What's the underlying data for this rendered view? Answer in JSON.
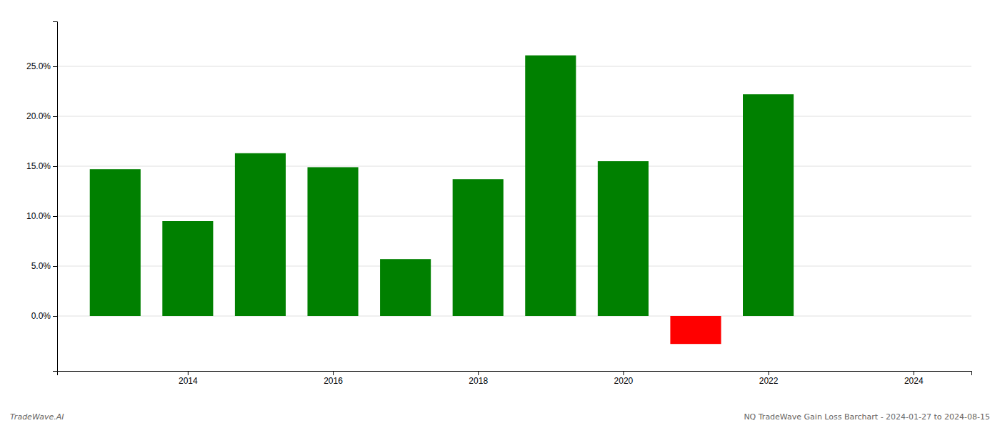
{
  "chart_data": {
    "type": "bar",
    "x": [
      2013,
      2014,
      2015,
      2016,
      2017,
      2018,
      2019,
      2020,
      2021,
      2022
    ],
    "values": [
      0.147,
      0.095,
      0.163,
      0.149,
      0.057,
      0.137,
      0.261,
      0.155,
      -0.028,
      0.222
    ],
    "colors": [
      "#008000",
      "#008000",
      "#008000",
      "#008000",
      "#008000",
      "#008000",
      "#008000",
      "#008000",
      "#ff0000",
      "#008000"
    ],
    "xlim": [
      2012.2,
      2024.8
    ],
    "xticks": [
      2014,
      2016,
      2018,
      2020,
      2022,
      2024
    ],
    "ylim": [
      -0.055,
      0.295
    ],
    "yticks": [
      {
        "value": 0.0,
        "label": "0.0%"
      },
      {
        "value": 0.05,
        "label": "5.0%"
      },
      {
        "value": 0.1,
        "label": "10.0%"
      },
      {
        "value": 0.15,
        "label": "15.0%"
      },
      {
        "value": 0.2,
        "label": "20.0%"
      },
      {
        "value": 0.25,
        "label": "25.0%"
      }
    ],
    "grid": true,
    "annotations": [
      "TradeWave.AI",
      "NQ TradeWave Gain Loss Barchart - 2024-01-27 to 2024-08-15"
    ]
  }
}
